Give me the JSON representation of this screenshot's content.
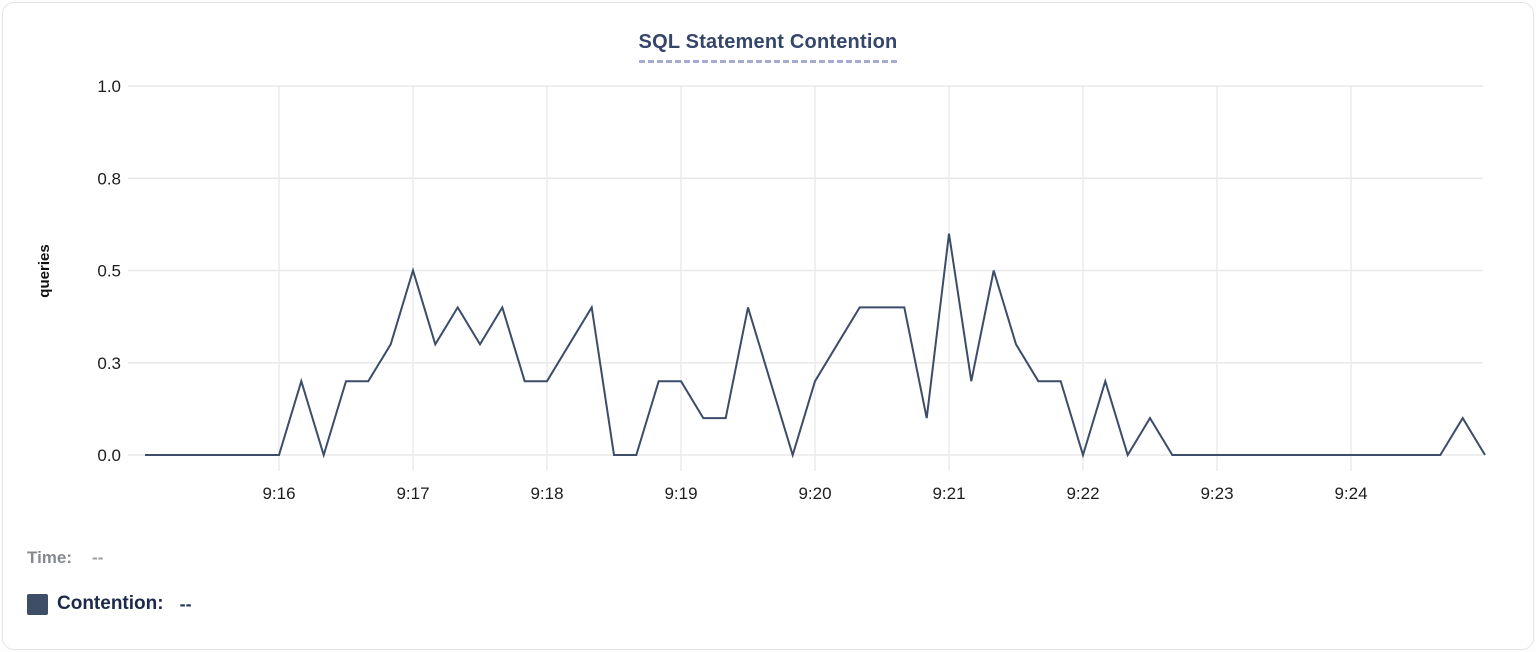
{
  "card": {
    "title": "SQL Statement Contention"
  },
  "chart_data": {
    "type": "line",
    "title": "SQL Statement Contention",
    "xlabel": "",
    "ylabel": "queries",
    "ylim": [
      0,
      1.0
    ],
    "grid": true,
    "legend_position": "below-left",
    "y_ticks": [
      {
        "value": 1.0,
        "label": "1.0"
      },
      {
        "value": 0.75,
        "label": "0.8"
      },
      {
        "value": 0.5,
        "label": "0.5"
      },
      {
        "value": 0.25,
        "label": "0.3"
      },
      {
        "value": 0.0,
        "label": "0.0"
      }
    ],
    "x_tick_labels": [
      "9:16",
      "9:17",
      "9:18",
      "9:19",
      "9:20",
      "9:21",
      "9:22",
      "9:23",
      "9:24"
    ],
    "x_tick_first_index": 6,
    "x_tick_index_step": 6,
    "start_time": "9:15:00",
    "end_time": "9:25:00",
    "interval_seconds": 10,
    "series": [
      {
        "name": "Contention",
        "color": "#3c4c69",
        "values": [
          0,
          0,
          0,
          0,
          0,
          0,
          0,
          0.2,
          0,
          0.2,
          0.2,
          0.3,
          0.5,
          0.3,
          0.4,
          0.3,
          0.4,
          0.2,
          0.2,
          0.3,
          0.4,
          0,
          0,
          0.2,
          0.2,
          0.1,
          0.1,
          0.4,
          0.2,
          0,
          0.2,
          0.3,
          0.4,
          0.4,
          0.4,
          0.1,
          0.6,
          0.2,
          0.5,
          0.3,
          0.2,
          0.2,
          0,
          0.2,
          0,
          0.1,
          0,
          0,
          0,
          0,
          0,
          0,
          0,
          0,
          0,
          0,
          0,
          0,
          0,
          0.1,
          0
        ]
      }
    ]
  },
  "readout": {
    "time_label": "Time:",
    "time_value": "--",
    "series_label": "Contention:",
    "series_value": "--",
    "swatch_color": "#3e4e67"
  },
  "colors": {
    "line": "#3c4c69",
    "grid": "#e9e9e9",
    "tick_text": "#1d1d1f",
    "axis_title_text": "#111111",
    "title_text": "#35466b",
    "title_underline": "#a5abd4"
  }
}
